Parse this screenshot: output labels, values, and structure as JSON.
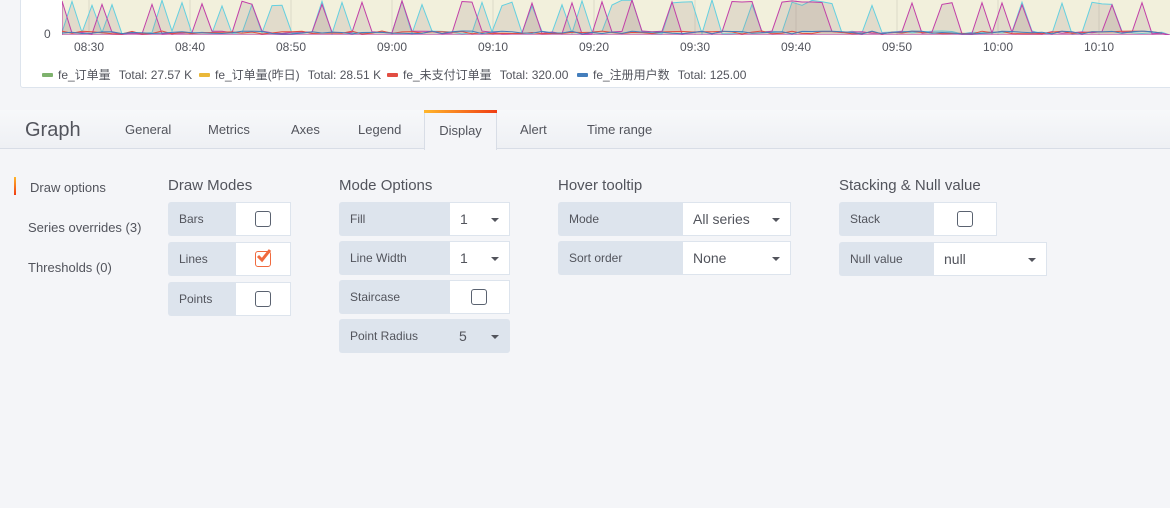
{
  "chart": {
    "y_tick": "0",
    "x_ticks": [
      "08:30",
      "08:40",
      "08:50",
      "09:00",
      "09:10",
      "09:20",
      "09:30",
      "09:40",
      "09:50",
      "10:00",
      "10:10"
    ],
    "legend": [
      {
        "name": "fe_订单量",
        "total": "Total: 27.57 K",
        "color": "#7eb26d"
      },
      {
        "name": "fe_订单量(昨日)",
        "total": "Total: 28.51 K",
        "color": "#eab839"
      },
      {
        "name": "fe_未支付订单量",
        "total": "Total: 320.00",
        "color": "#e24d42"
      },
      {
        "name": "fe_注册用户数",
        "total": "Total: 125.00",
        "color": "#447ebc"
      }
    ],
    "plot_bg": "#f2f0dc"
  },
  "editor": {
    "title": "Graph",
    "tabs": [
      "General",
      "Metrics",
      "Axes",
      "Legend",
      "Display",
      "Alert",
      "Time range"
    ],
    "active_tab": "Display"
  },
  "sidebar": {
    "items": [
      "Draw options",
      "Series overrides (3)",
      "Thresholds (0)"
    ],
    "active": "Draw options"
  },
  "draw_modes": {
    "title": "Draw Modes",
    "bars": {
      "label": "Bars",
      "checked": false
    },
    "lines": {
      "label": "Lines",
      "checked": true
    },
    "points": {
      "label": "Points",
      "checked": false
    }
  },
  "mode_options": {
    "title": "Mode Options",
    "fill": {
      "label": "Fill",
      "value": "1"
    },
    "line_width": {
      "label": "Line Width",
      "value": "1"
    },
    "staircase": {
      "label": "Staircase",
      "checked": false
    },
    "point_radius": {
      "label": "Point Radius",
      "value": "5"
    }
  },
  "hover_tooltip": {
    "title": "Hover tooltip",
    "mode": {
      "label": "Mode",
      "value": "All series"
    },
    "sort_order": {
      "label": "Sort order",
      "value": "None"
    }
  },
  "stacking": {
    "title": "Stacking & Null value",
    "stack": {
      "label": "Stack",
      "checked": false
    },
    "null_value": {
      "label": "Null value",
      "value": "null"
    }
  },
  "accent": "#f06a3e"
}
